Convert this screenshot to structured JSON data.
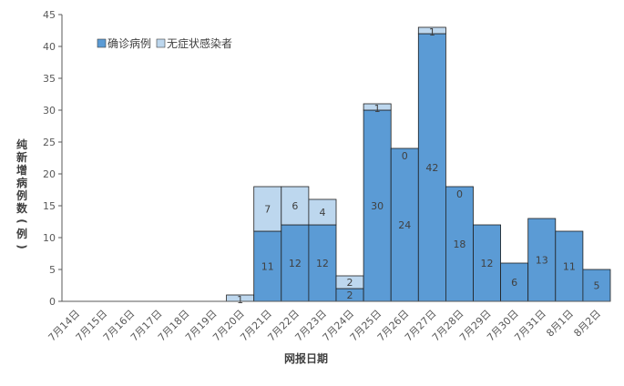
{
  "chart_data": {
    "type": "bar",
    "stacked": true,
    "categories": [
      "7月14日",
      "7月15日",
      "7月16日",
      "7月17日",
      "7月18日",
      "7月19日",
      "7月20日",
      "7月21日",
      "7月22日",
      "7月23日",
      "7月24日",
      "7月25日",
      "7月26日",
      "7月27日",
      "7月28日",
      "7月29日",
      "7月30日",
      "7月31日",
      "8月1日",
      "8月2日"
    ],
    "series": [
      {
        "name": "确诊病例",
        "color": "#5b9bd5",
        "values": [
          0,
          0,
          0,
          0,
          0,
          0,
          0,
          11,
          12,
          12,
          2,
          30,
          24,
          42,
          18,
          12,
          6,
          13,
          11,
          5
        ]
      },
      {
        "name": "无症状感染者",
        "color": "#bdd7ee",
        "values": [
          0,
          0,
          0,
          0,
          0,
          0,
          1,
          7,
          6,
          4,
          2,
          1,
          0,
          1,
          0,
          0,
          0,
          0,
          0,
          0
        ]
      }
    ],
    "data_labels": {
      "确诊病例": [
        "",
        "",
        "",
        "",
        "",
        "",
        "",
        "11",
        "12",
        "12",
        "2",
        "30",
        "24",
        "42",
        "18",
        "12",
        "6",
        "13",
        "11",
        "5"
      ],
      "无症状感染者": [
        "",
        "",
        "",
        "",
        "",
        "",
        "1",
        "7",
        "6",
        "4",
        "2",
        "1",
        "0",
        "1",
        "0",
        "",
        "",
        "",
        "",
        ""
      ]
    },
    "xlabel": "网报日期",
    "ylabel_chars": [
      "纯",
      "新",
      "增",
      "病",
      "例",
      "数",
      "(",
      "例",
      ")"
    ],
    "ylim": [
      0,
      45
    ],
    "yticks": [
      0,
      5,
      10,
      15,
      20,
      25,
      30,
      35,
      40,
      45
    ],
    "grid": false,
    "legend_position": "top-left"
  }
}
